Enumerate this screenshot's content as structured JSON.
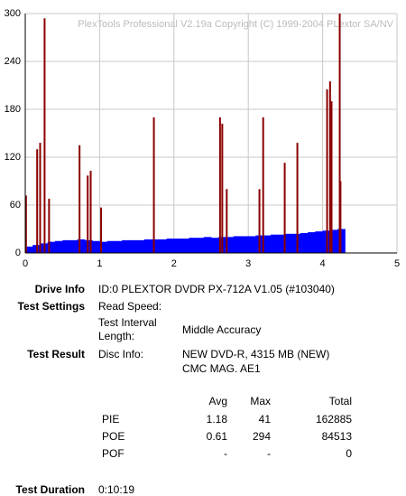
{
  "chart_data": {
    "type": "bar",
    "watermark": "PlexTools Professional V2.19a Copyright (C) 1999-2004 PLextor SA/NV",
    "xlim": [
      0,
      5
    ],
    "xticks": [
      0,
      1,
      2,
      3,
      4,
      5
    ],
    "ylim": [
      0,
      300
    ],
    "yticks": [
      0,
      60,
      120,
      180,
      240,
      300
    ],
    "grid": true,
    "series": [
      {
        "name": "PIE",
        "color": "#0000ff",
        "x": [
          0,
          0.1,
          0.2,
          0.3,
          0.4,
          0.5,
          0.6,
          0.7,
          0.8,
          0.9,
          1,
          1.1,
          1.2,
          1.3,
          1.4,
          1.5,
          1.6,
          1.7,
          1.8,
          1.9,
          2,
          2.1,
          2.2,
          2.3,
          2.4,
          2.5,
          2.6,
          2.7,
          2.8,
          2.9,
          3,
          3.1,
          3.2,
          3.3,
          3.4,
          3.5,
          3.6,
          3.7,
          3.8,
          3.9,
          4,
          4.1,
          4.2
        ],
        "values": [
          8,
          10,
          12,
          14,
          15,
          16,
          16,
          17,
          16,
          15,
          14,
          15,
          15,
          16,
          16,
          16,
          17,
          17,
          17,
          18,
          18,
          18,
          19,
          19,
          20,
          19,
          20,
          20,
          21,
          21,
          21,
          22,
          22,
          23,
          23,
          24,
          24,
          25,
          26,
          27,
          28,
          29,
          30
        ]
      },
      {
        "name": "POE",
        "color": "#8b0000",
        "x": [
          0.01,
          0.16,
          0.2,
          0.26,
          0.32,
          0.73,
          0.84,
          0.88,
          1.02,
          1.73,
          2.62,
          2.65,
          2.71,
          3.15,
          3.2,
          3.49,
          3.66,
          4.06,
          4.1,
          4.12,
          4.23,
          4.24
        ],
        "values": [
          72,
          130,
          138,
          294,
          68,
          135,
          97,
          103,
          57,
          170,
          170,
          162,
          80,
          80,
          170,
          113,
          138,
          205,
          215,
          190,
          300,
          90
        ]
      }
    ]
  },
  "report": {
    "drive_info": {
      "label": "Drive Info",
      "value": "ID:0 PLEXTOR DVDR PX-712A V1.05 (#103040)"
    },
    "test_settings": {
      "label": "Test Settings",
      "read_speed": "Read Speed:",
      "interval_label": "Test Interval Length:",
      "interval": "Middle Accuracy"
    },
    "test_result": {
      "label": "Test Result",
      "disc_info_label": "Disc Info:",
      "disc_info": [
        "NEW DVD-R, 4315 MB (NEW)",
        "CMC MAG. AE1"
      ]
    },
    "stats": {
      "header": [
        "Avg",
        "Max",
        "Total"
      ],
      "rows": [
        [
          "PIE",
          1.18,
          41,
          162885
        ],
        [
          "POE",
          0.61,
          294,
          84513
        ],
        [
          "POF",
          "-",
          "-",
          0
        ]
      ]
    },
    "duration": {
      "label": "Test Duration",
      "value": "0:10:19"
    }
  }
}
